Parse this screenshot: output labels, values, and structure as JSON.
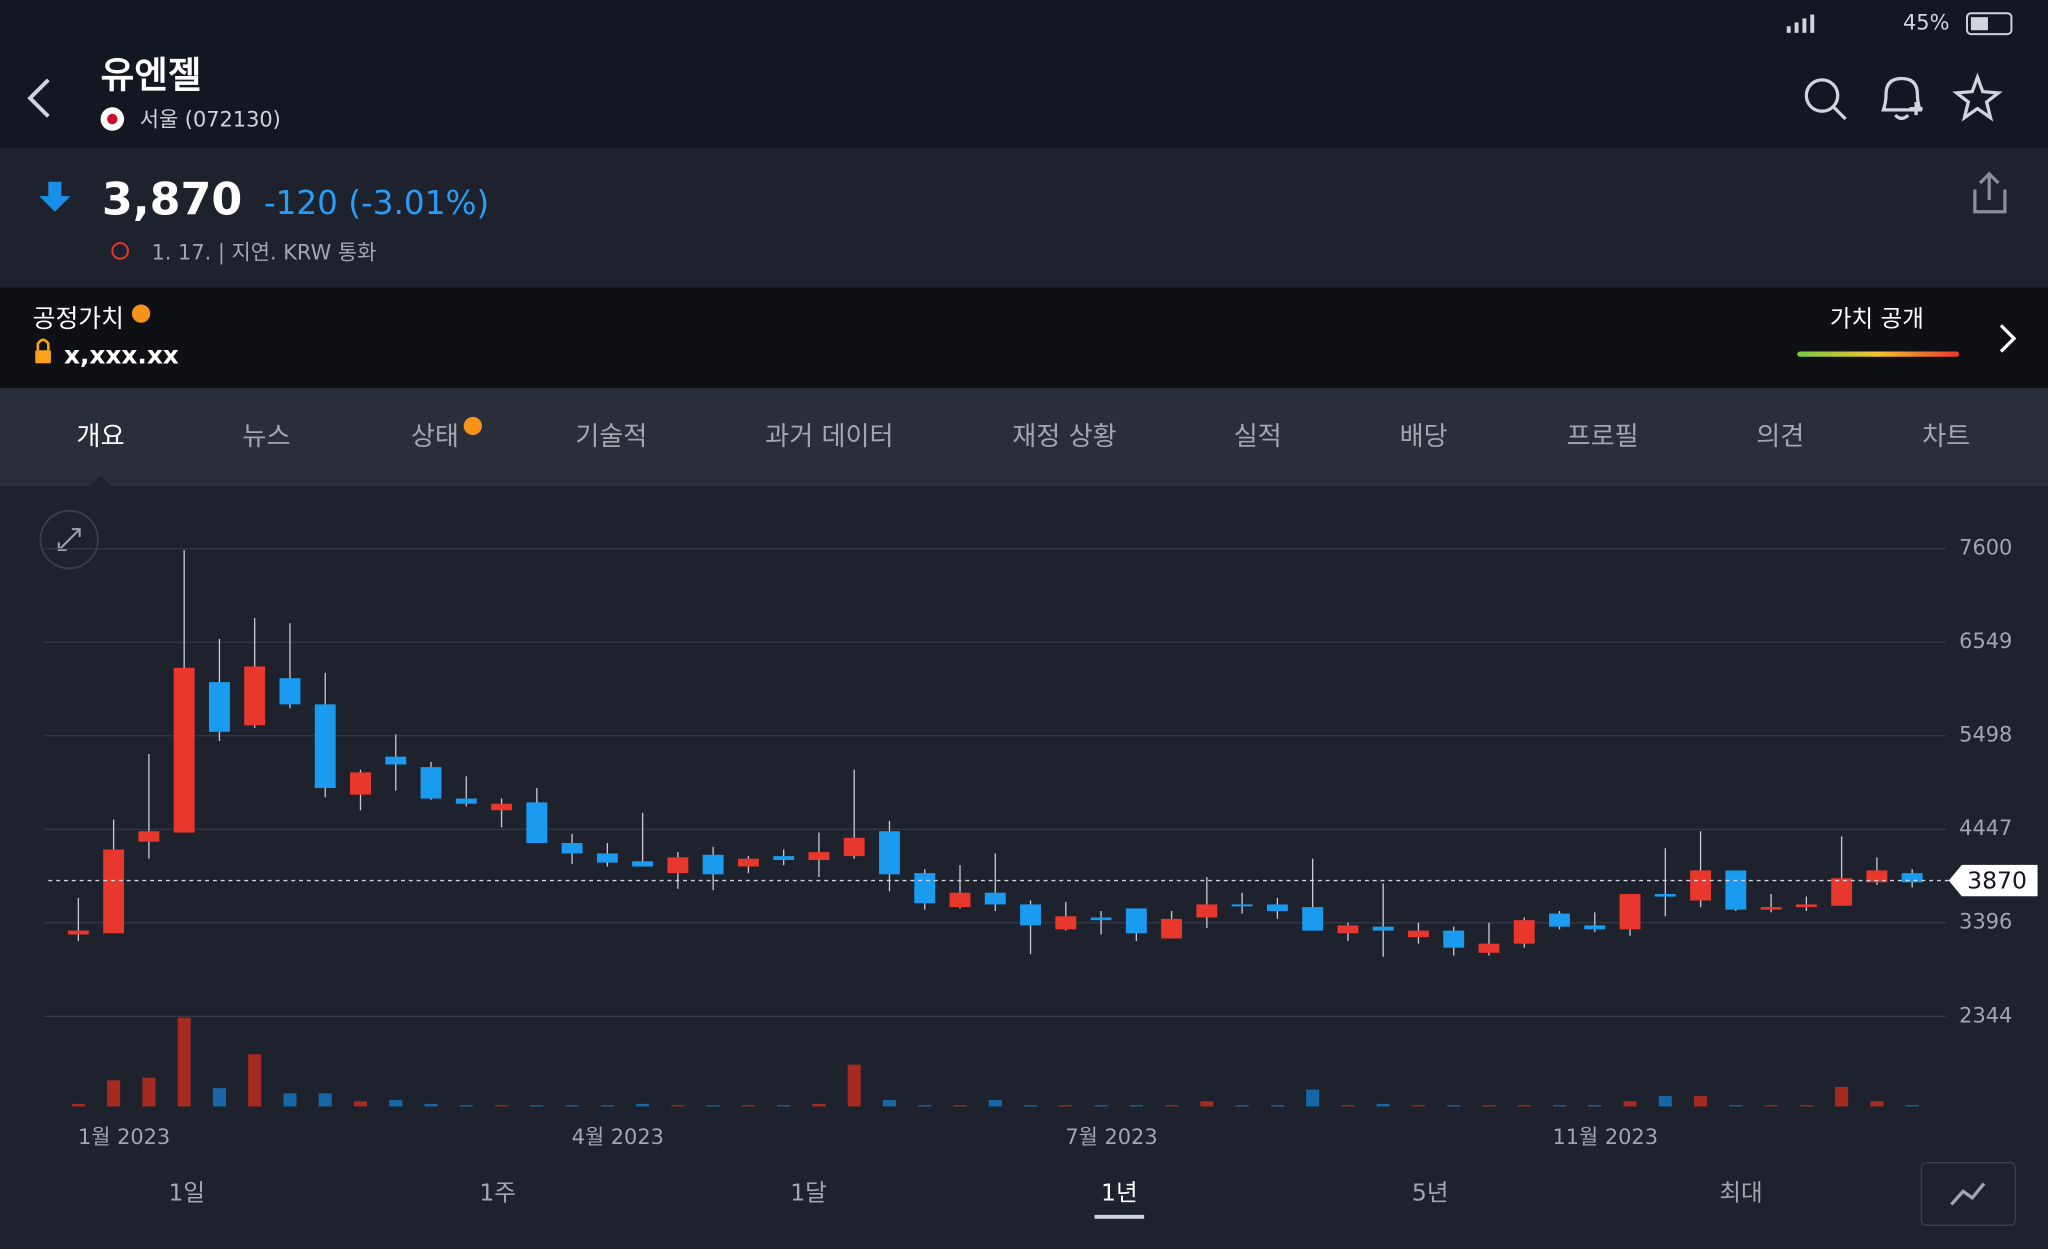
{
  "status_bar": {
    "battery": "45%"
  },
  "header": {
    "title": "유엔젤",
    "exchange": "서울 (072130)"
  },
  "quote": {
    "price": "3,870",
    "change": "-120 (-3.01%)",
    "meta": "1. 17. | 지연. KRW 통화"
  },
  "fair_value": {
    "label": "공정가치",
    "value": "x,xxx.xx",
    "button": "가치 공개"
  },
  "tabs": {
    "items": [
      "개요",
      "뉴스",
      "상태",
      "기술적",
      "과거 데이터",
      "재정 상황",
      "실적",
      "배당",
      "프로필",
      "의견",
      "차트"
    ],
    "selected": 0
  },
  "ranges": {
    "items": [
      "1일",
      "1주",
      "1달",
      "1년",
      "5년",
      "최대"
    ],
    "selected": 3
  },
  "chart_data": {
    "type": "candlestick",
    "categories": [
      null,
      "1월 2023",
      null,
      null,
      null,
      null,
      null,
      null,
      null,
      null,
      null,
      null,
      null,
      null,
      null,
      "4월 2023",
      null,
      null,
      null,
      null,
      null,
      null,
      null,
      null,
      null,
      null,
      null,
      null,
      null,
      "7월 2023",
      null,
      null,
      null,
      null,
      null,
      null,
      null,
      null,
      null,
      null,
      null,
      null,
      null,
      "11월 2023",
      null,
      null,
      null,
      null,
      null,
      null,
      null,
      null,
      null
    ],
    "open": [
      3264,
      3278,
      4307,
      4410,
      6101,
      5616,
      6145,
      5851,
      4836,
      5263,
      5145,
      4792,
      4660,
      4749,
      4292,
      4175,
      4087,
      3954,
      4160,
      4028,
      4145,
      4101,
      4145,
      4425,
      3954,
      3572,
      3734,
      3602,
      3322,
      3455,
      3557,
      3219,
      3455,
      3602,
      3602,
      3572,
      3278,
      3352,
      3234,
      3308,
      3058,
      3161,
      3499,
      3366,
      3322,
      3719,
      3646,
      3984,
      3543,
      3572,
      3587,
      3851,
      3954
    ],
    "high": [
      3675,
      4557,
      5292,
      7585,
      6586,
      6821,
      6762,
      6204,
      5116,
      5513,
      5204,
      5042,
      4792,
      4910,
      4395,
      4292,
      4631,
      4190,
      4249,
      4145,
      4219,
      4410,
      5116,
      4542,
      3999,
      4043,
      4175,
      3646,
      3631,
      3528,
      3557,
      3528,
      3910,
      3734,
      3675,
      4116,
      3396,
      3837,
      3396,
      3352,
      3396,
      3455,
      3528,
      3513,
      3719,
      4234,
      4425,
      3984,
      3719,
      3690,
      4366,
      4131,
      3999
    ],
    "low": [
      3190,
      3278,
      4116,
      4410,
      5439,
      5586,
      5807,
      4807,
      4660,
      4881,
      4778,
      4704,
      4469,
      4292,
      4057,
      4028,
      4028,
      3778,
      3763,
      3954,
      4043,
      3910,
      4116,
      3749,
      3543,
      3557,
      3528,
      3043,
      3308,
      3264,
      3190,
      3219,
      3337,
      3499,
      3440,
      3308,
      3190,
      3014,
      3161,
      3028,
      3028,
      3116,
      3322,
      3293,
      3249,
      3469,
      3572,
      3528,
      3513,
      3528,
      3587,
      3822,
      3793
    ],
    "close": [
      3308,
      4219,
      4425,
      6262,
      5542,
      6277,
      5851,
      4910,
      5086,
      5175,
      4792,
      4734,
      4734,
      4292,
      4175,
      4072,
      4028,
      4131,
      3940,
      4116,
      4101,
      4190,
      4351,
      3940,
      3616,
      3734,
      3602,
      3366,
      3469,
      3425,
      3278,
      3440,
      3602,
      3587,
      3528,
      3308,
      3366,
      3308,
      3308,
      3116,
      3161,
      3425,
      3352,
      3322,
      3719,
      3690,
      3984,
      3543,
      3572,
      3602,
      3896,
      3984,
      3851
    ],
    "volume": [
      2,
      20,
      22,
      68,
      14,
      40,
      10,
      10,
      4,
      5,
      2,
      1,
      1,
      1,
      1,
      1,
      2,
      1,
      1,
      1,
      1,
      2,
      32,
      5,
      1,
      1,
      5,
      1,
      1,
      1,
      1,
      1,
      4,
      1,
      1,
      13,
      1,
      2,
      1,
      1,
      1,
      1,
      1,
      1,
      4,
      8,
      8,
      1,
      1,
      1,
      15,
      4,
      1
    ],
    "up_color": "#e8372c",
    "down_color": "#1a9bf0",
    "up_volume_color": "#a52a22",
    "down_volume_color": "#1767a6",
    "ylim": [
      2344,
      7600
    ],
    "yticks": [
      7600,
      6549,
      5498,
      4447,
      3396,
      2344
    ],
    "grid": true,
    "last_price": 3870
  }
}
